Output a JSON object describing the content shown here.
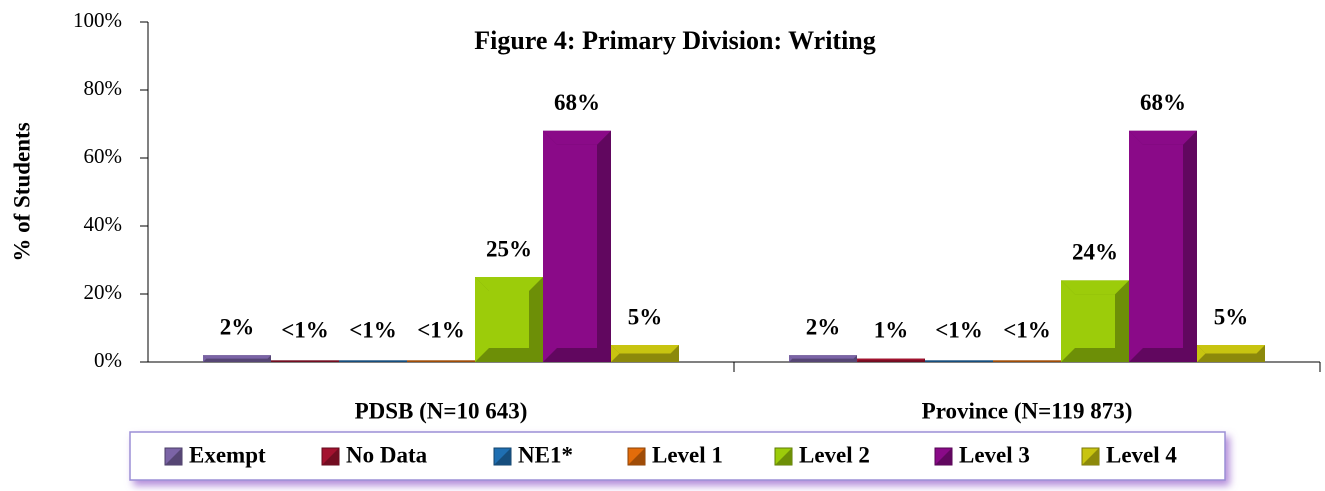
{
  "chart_data": {
    "type": "bar",
    "title": "Figure 4:  Primary Division:  Writing",
    "y_label": "% of Students",
    "categories": [
      "PDSB (N=10 643)",
      "Province (N=119 873)"
    ],
    "series": [
      {
        "name": "Exempt",
        "color": "#7b64a6",
        "values": [
          2,
          2
        ],
        "value_labels": [
          "2%",
          "2%"
        ]
      },
      {
        "name": "No Data",
        "color": "#a3122f",
        "values": [
          0.5,
          1
        ],
        "value_labels": [
          "<1%",
          "1%"
        ]
      },
      {
        "name": "NE1*",
        "color": "#1f6fb2",
        "values": [
          0.5,
          0.5
        ],
        "value_labels": [
          "<1%",
          "<1%"
        ]
      },
      {
        "name": "Level 1",
        "color": "#e36c0a",
        "values": [
          0.5,
          0.5
        ],
        "value_labels": [
          "<1%",
          "<1%"
        ]
      },
      {
        "name": "Level 2",
        "color": "#9ccc0a",
        "values": [
          25,
          24
        ],
        "value_labels": [
          "25%",
          "24%"
        ]
      },
      {
        "name": "Level 3",
        "color": "#8a0a88",
        "values": [
          68,
          68
        ],
        "value_labels": [
          "68%",
          "68%"
        ]
      },
      {
        "name": "Level 4",
        "color": "#c8c410",
        "values": [
          5,
          5
        ],
        "value_labels": [
          "5%",
          "5%"
        ]
      }
    ],
    "ylim": [
      0,
      100
    ],
    "yticks": [
      {
        "value": 0,
        "label": "0%"
      },
      {
        "value": 20,
        "label": "20%"
      },
      {
        "value": 40,
        "label": "40%"
      },
      {
        "value": 60,
        "label": "60%"
      },
      {
        "value": 80,
        "label": "80%"
      },
      {
        "value": 100,
        "label": "100%"
      }
    ],
    "legend": "bottom"
  }
}
